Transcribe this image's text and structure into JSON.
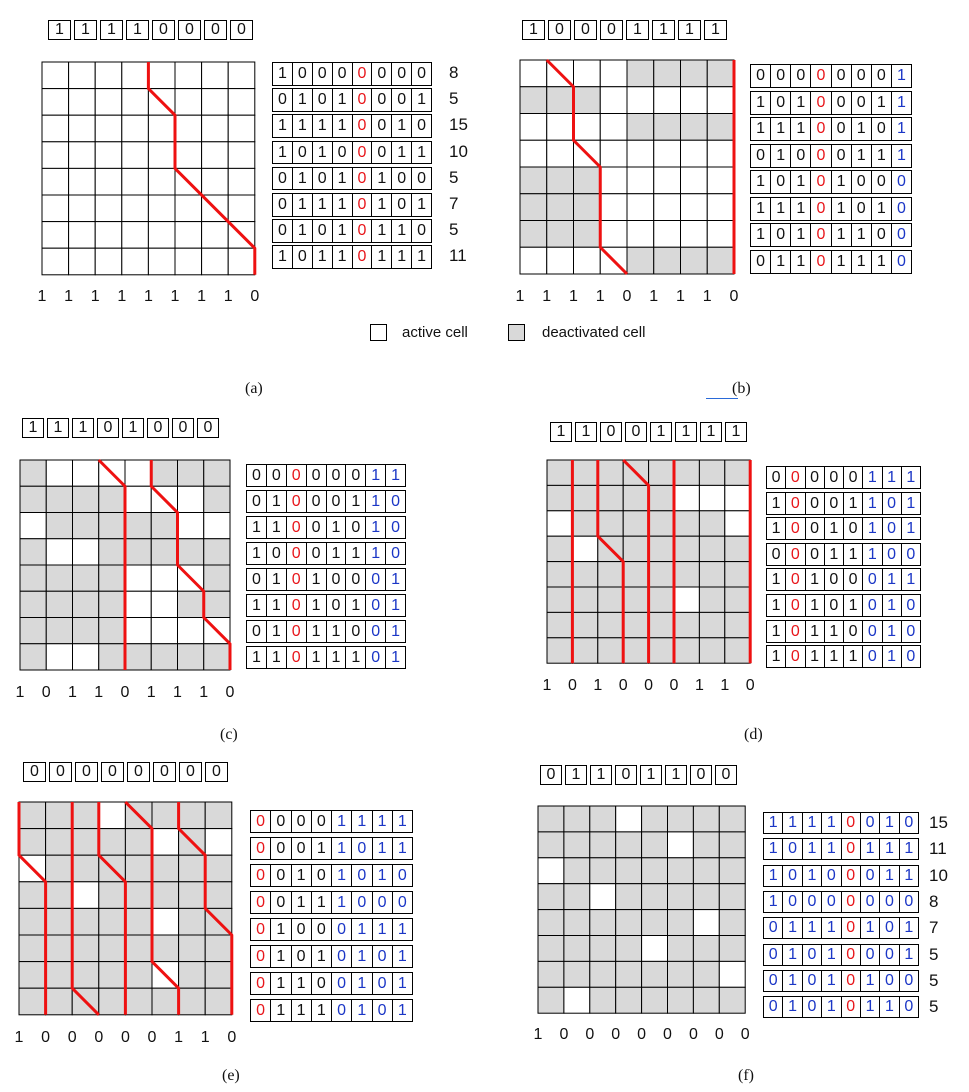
{
  "colors": {
    "active": "#ffffff",
    "inactive": "#d9d9d9",
    "path": "#ee1111",
    "bit_red": "#e8161b",
    "bit_blue": "#1b36c6",
    "grid_line": "#000000"
  },
  "legend": {
    "active_label": "active cell",
    "inactive_label": "deactivated cell"
  },
  "panels": [
    {
      "id": "a",
      "caption": "(a)",
      "top_bits": "11110000",
      "bottom_bits": [
        "1",
        "1",
        "1",
        "1",
        "1",
        "1",
        "1",
        "1",
        "0"
      ],
      "cells": [
        "00000000",
        "00000000",
        "00000000",
        "00000000",
        "00000000",
        "00000000",
        "00000000",
        "00000000"
      ],
      "path_lines": [
        [
          [
            4,
            0
          ],
          [
            4,
            1
          ],
          [
            5,
            2
          ],
          [
            5,
            4
          ],
          [
            8,
            7
          ],
          [
            8,
            8
          ]
        ]
      ],
      "rows": [
        {
          "bits": "10000000",
          "red": [
            4
          ],
          "blue": [],
          "label": "8"
        },
        {
          "bits": "01010001",
          "red": [
            4
          ],
          "blue": [],
          "label": "5"
        },
        {
          "bits": "11110010",
          "red": [
            4
          ],
          "blue": [],
          "label": "15"
        },
        {
          "bits": "10100011",
          "red": [
            4
          ],
          "blue": [],
          "label": "10"
        },
        {
          "bits": "01010100",
          "red": [
            4
          ],
          "blue": [],
          "label": "5"
        },
        {
          "bits": "01110101",
          "red": [
            4
          ],
          "blue": [],
          "label": "7"
        },
        {
          "bits": "01010110",
          "red": [
            4
          ],
          "blue": [],
          "label": "5"
        },
        {
          "bits": "10110111",
          "red": [
            4
          ],
          "blue": [],
          "label": "11"
        }
      ]
    },
    {
      "id": "b",
      "caption": "(b)",
      "top_bits": "10001111",
      "bottom_bits": [
        "1",
        "1",
        "1",
        "1",
        "0",
        "1",
        "1",
        "1",
        "0"
      ],
      "cells": [
        "00001111",
        "11100000",
        "00001111",
        "00000000",
        "11100000",
        "11100000",
        "11100000",
        "00001111"
      ],
      "path_lines": [
        [
          [
            1,
            0
          ],
          [
            2,
            1
          ],
          [
            2,
            3
          ],
          [
            3,
            4
          ],
          [
            3,
            7
          ],
          [
            4,
            8
          ]
        ],
        [
          [
            8,
            0
          ],
          [
            8,
            8
          ]
        ]
      ],
      "rows": [
        {
          "bits": "00000001",
          "red": [
            3
          ],
          "blue": [
            7
          ],
          "label": ""
        },
        {
          "bits": "10100011",
          "red": [
            3
          ],
          "blue": [
            7
          ],
          "label": ""
        },
        {
          "bits": "11100101",
          "red": [
            3
          ],
          "blue": [
            7
          ],
          "label": ""
        },
        {
          "bits": "01000111",
          "red": [
            3
          ],
          "blue": [
            7
          ],
          "label": ""
        },
        {
          "bits": "10101000",
          "red": [
            3
          ],
          "blue": [
            7
          ],
          "label": ""
        },
        {
          "bits": "11101010",
          "red": [
            3
          ],
          "blue": [
            7
          ],
          "label": ""
        },
        {
          "bits": "10101100",
          "red": [
            3
          ],
          "blue": [
            7
          ],
          "label": ""
        },
        {
          "bits": "01101110",
          "red": [
            3
          ],
          "blue": [
            7
          ],
          "label": ""
        }
      ]
    },
    {
      "id": "c",
      "caption": "(c)",
      "top_bits": "11101000",
      "bottom_bits": [
        "1",
        "0",
        "1",
        "1",
        "0",
        "1",
        "1",
        "1",
        "0"
      ],
      "cells": [
        "10000111",
        "11110001",
        "01111100",
        "10011111",
        "11110001",
        "11110011",
        "11110000",
        "10011111"
      ],
      "path_lines": [
        [
          [
            3,
            0
          ],
          [
            4,
            1
          ],
          [
            4,
            8
          ]
        ],
        [
          [
            5,
            0
          ],
          [
            5,
            1
          ],
          [
            6,
            2
          ],
          [
            6,
            4
          ],
          [
            7,
            5
          ],
          [
            7,
            6
          ],
          [
            8,
            7
          ],
          [
            8,
            8
          ]
        ]
      ],
      "rows": [
        {
          "bits": "00000011",
          "red": [
            2
          ],
          "blue": [
            6,
            7
          ],
          "label": ""
        },
        {
          "bits": "01000110",
          "red": [
            2
          ],
          "blue": [
            6,
            7
          ],
          "label": ""
        },
        {
          "bits": "11001010",
          "red": [
            2
          ],
          "blue": [
            6,
            7
          ],
          "label": ""
        },
        {
          "bits": "10001110",
          "red": [
            2
          ],
          "blue": [
            6,
            7
          ],
          "label": ""
        },
        {
          "bits": "01010001",
          "red": [
            2
          ],
          "blue": [
            6,
            7
          ],
          "label": ""
        },
        {
          "bits": "11010101",
          "red": [
            2
          ],
          "blue": [
            6,
            7
          ],
          "label": ""
        },
        {
          "bits": "01011001",
          "red": [
            2
          ],
          "blue": [
            6,
            7
          ],
          "label": ""
        },
        {
          "bits": "11011101",
          "red": [
            2
          ],
          "blue": [
            6,
            7
          ],
          "label": ""
        }
      ]
    },
    {
      "id": "d",
      "caption": "(d)",
      "top_bits": "11001111",
      "bottom_bits": [
        "1",
        "0",
        "1",
        "0",
        "0",
        "0",
        "1",
        "1",
        "0"
      ],
      "cells": [
        "11111111",
        "11111000",
        "01111110",
        "10111111",
        "11111111",
        "11111011",
        "11111111",
        "11111111"
      ],
      "path_lines": [
        [
          [
            1,
            0
          ],
          [
            1,
            8
          ]
        ],
        [
          [
            2,
            0
          ],
          [
            2,
            3
          ],
          [
            3,
            4
          ],
          [
            3,
            8
          ]
        ],
        [
          [
            3,
            0
          ],
          [
            4,
            1
          ],
          [
            4,
            8
          ]
        ],
        [
          [
            5,
            0
          ],
          [
            5,
            8
          ]
        ],
        [
          [
            8,
            0
          ],
          [
            8,
            8
          ]
        ]
      ],
      "rows": [
        {
          "bits": "00000111",
          "red": [
            1
          ],
          "blue": [
            5,
            6,
            7
          ],
          "label": ""
        },
        {
          "bits": "10001101",
          "red": [
            1
          ],
          "blue": [
            5,
            6,
            7
          ],
          "label": ""
        },
        {
          "bits": "10010101",
          "red": [
            1
          ],
          "blue": [
            5,
            6,
            7
          ],
          "label": ""
        },
        {
          "bits": "00011100",
          "red": [
            1
          ],
          "blue": [
            5,
            6,
            7
          ],
          "label": ""
        },
        {
          "bits": "10100011",
          "red": [
            1
          ],
          "blue": [
            5,
            6,
            7
          ],
          "label": ""
        },
        {
          "bits": "10101010",
          "red": [
            1
          ],
          "blue": [
            5,
            6,
            7
          ],
          "label": ""
        },
        {
          "bits": "10110010",
          "red": [
            1
          ],
          "blue": [
            5,
            6,
            7
          ],
          "label": ""
        },
        {
          "bits": "10111010",
          "red": [
            1
          ],
          "blue": [
            5,
            6,
            7
          ],
          "label": ""
        }
      ]
    },
    {
      "id": "e",
      "caption": "(e)",
      "top_bits": "00000000",
      "bottom_bits": [
        "1",
        "0",
        "0",
        "0",
        "0",
        "0",
        "1",
        "1",
        "0"
      ],
      "cells": [
        "11101111",
        "11111010",
        "01111111",
        "11011111",
        "11111011",
        "11111111",
        "11111011",
        "11111111"
      ],
      "path_lines": [
        [
          [
            0,
            0
          ],
          [
            0,
            2
          ],
          [
            1,
            3
          ],
          [
            1,
            8
          ]
        ],
        [
          [
            2,
            0
          ],
          [
            2,
            7
          ],
          [
            3,
            8
          ]
        ],
        [
          [
            3,
            0
          ],
          [
            3,
            2
          ],
          [
            4,
            3
          ],
          [
            4,
            8
          ]
        ],
        [
          [
            4,
            0
          ],
          [
            5,
            1
          ],
          [
            5,
            6
          ],
          [
            6,
            7
          ],
          [
            6,
            8
          ]
        ],
        [
          [
            6,
            0
          ],
          [
            6,
            1
          ],
          [
            7,
            2
          ],
          [
            7,
            4
          ],
          [
            8,
            5
          ],
          [
            8,
            8
          ]
        ]
      ],
      "rows": [
        {
          "bits": "00001111",
          "red": [
            0
          ],
          "blue": [
            4,
            5,
            6,
            7
          ],
          "label": ""
        },
        {
          "bits": "00011011",
          "red": [
            0
          ],
          "blue": [
            4,
            5,
            6,
            7
          ],
          "label": ""
        },
        {
          "bits": "00101010",
          "red": [
            0
          ],
          "blue": [
            4,
            5,
            6,
            7
          ],
          "label": ""
        },
        {
          "bits": "00111000",
          "red": [
            0
          ],
          "blue": [
            4,
            5,
            6,
            7
          ],
          "label": ""
        },
        {
          "bits": "01000111",
          "red": [
            0
          ],
          "blue": [
            4,
            5,
            6,
            7
          ],
          "label": ""
        },
        {
          "bits": "01010101",
          "red": [
            0
          ],
          "blue": [
            4,
            5,
            6,
            7
          ],
          "label": ""
        },
        {
          "bits": "01100101",
          "red": [
            0
          ],
          "blue": [
            4,
            5,
            6,
            7
          ],
          "label": ""
        },
        {
          "bits": "01110101",
          "red": [
            0
          ],
          "blue": [
            4,
            5,
            6,
            7
          ],
          "label": ""
        }
      ]
    },
    {
      "id": "f",
      "caption": "(f)",
      "top_bits": "01101100",
      "bottom_bits": [
        "1",
        "0",
        "0",
        "0",
        "0",
        "0",
        "0",
        "0",
        "0"
      ],
      "cells": [
        "11101111",
        "11111011",
        "01111111",
        "11011111",
        "11111101",
        "11110111",
        "11111110",
        "10111111"
      ],
      "path_lines": [],
      "rows": [
        {
          "bits": "11110010",
          "red": [
            4
          ],
          "blue": [
            0,
            1,
            2,
            3,
            5,
            6,
            7
          ],
          "label": "15"
        },
        {
          "bits": "10110111",
          "red": [
            4
          ],
          "blue": [
            0,
            1,
            2,
            3,
            5,
            6,
            7
          ],
          "label": "11"
        },
        {
          "bits": "10100011",
          "red": [
            4
          ],
          "blue": [
            0,
            1,
            2,
            3,
            5,
            6,
            7
          ],
          "label": "10"
        },
        {
          "bits": "10000000",
          "red": [
            4
          ],
          "blue": [
            0,
            1,
            2,
            3,
            5,
            6,
            7
          ],
          "label": "8"
        },
        {
          "bits": "01110101",
          "red": [
            4
          ],
          "blue": [
            0,
            1,
            2,
            3,
            5,
            6,
            7
          ],
          "label": "7"
        },
        {
          "bits": "01010001",
          "red": [
            4
          ],
          "blue": [
            0,
            1,
            2,
            3,
            5,
            6,
            7
          ],
          "label": "5"
        },
        {
          "bits": "01010100",
          "red": [
            4
          ],
          "blue": [
            0,
            1,
            2,
            3,
            5,
            6,
            7
          ],
          "label": "5"
        },
        {
          "bits": "01010110",
          "red": [
            4
          ],
          "blue": [
            0,
            1,
            2,
            3,
            5,
            6,
            7
          ],
          "label": "5"
        }
      ]
    }
  ]
}
